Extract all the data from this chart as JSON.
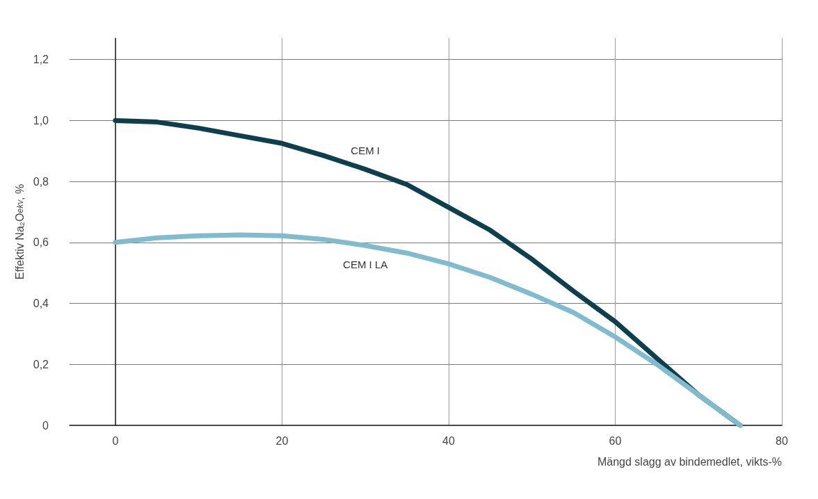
{
  "chart_data": {
    "type": "line",
    "xlabel": "Mängd slagg av bindemedlet, vikts-%",
    "ylabel": "Effektiv Na₂O$_{ekv}$, %",
    "xlim": [
      -5.5,
      80
    ],
    "xticks": [
      0,
      20,
      40,
      60,
      80
    ],
    "ylim": [
      0,
      1.27
    ],
    "yticks": [
      0,
      {
        "value": 0.2,
        "label": "0,2"
      },
      {
        "value": 0.4,
        "label": "0,4"
      },
      {
        "value": 0.6,
        "label": "0,6"
      },
      {
        "value": 0.8,
        "label": "0,8"
      },
      {
        "value": 1.0,
        "label": "1,0"
      },
      {
        "value": 1.2,
        "label": "1,2"
      }
    ],
    "grid": true,
    "legend": false,
    "marker": "none",
    "line_style": "solid",
    "series": [
      {
        "name": "CEM I",
        "color": "#0d3f4c",
        "x": [
          0,
          5,
          10,
          15,
          20,
          25,
          30,
          35,
          40,
          45,
          50,
          55,
          60,
          65,
          70,
          75
        ],
        "values": [
          1.0,
          0.995,
          0.975,
          0.95,
          0.925,
          0.885,
          0.84,
          0.79,
          0.715,
          0.64,
          0.545,
          0.44,
          0.34,
          0.22,
          0.1,
          0.0
        ]
      },
      {
        "name": "CEM I LA",
        "color": "#80bccd",
        "x": [
          0,
          5,
          10,
          15,
          20,
          25,
          30,
          35,
          40,
          45,
          50,
          55,
          60,
          65,
          70,
          75
        ],
        "values": [
          0.6,
          0.615,
          0.622,
          0.625,
          0.622,
          0.61,
          0.59,
          0.565,
          0.53,
          0.485,
          0.43,
          0.37,
          0.29,
          0.2,
          0.1,
          0.0
        ]
      }
    ]
  }
}
